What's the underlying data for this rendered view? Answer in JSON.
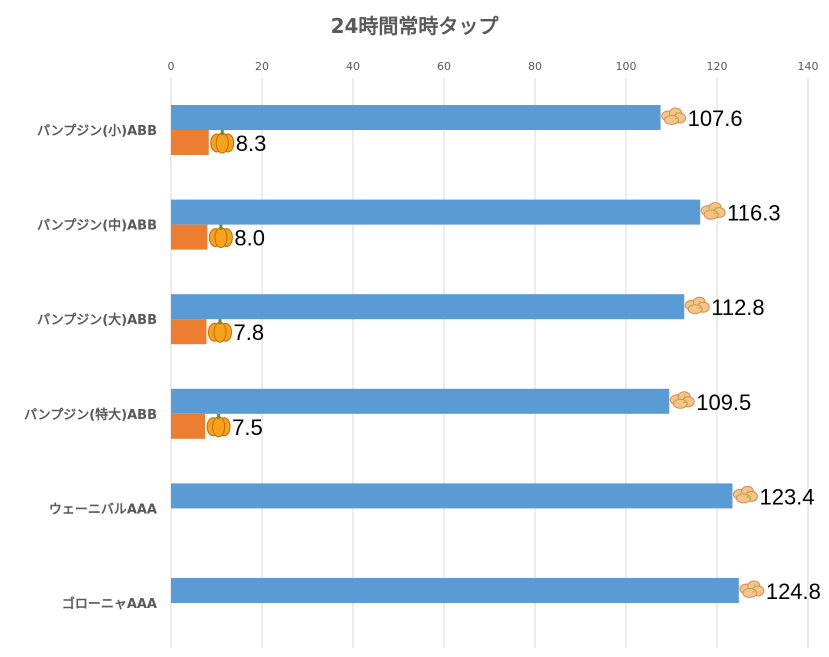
{
  "chart_data": {
    "type": "bar",
    "orientation": "horizontal",
    "title": "24時間常時タップ",
    "categories": [
      "パンプジン(小)ABB",
      "パンプジン(中)ABB",
      "パンプジン(大)ABB",
      "パンプジン(特大)ABB",
      "ウェーニバルAAA",
      "ゴローニャAAA"
    ],
    "series": [
      {
        "icon": "ginger-icon",
        "color": "#5b9bd5",
        "values": [
          107.6,
          116.3,
          112.8,
          109.5,
          123.4,
          124.8
        ],
        "labels": [
          "107.6",
          "116.3",
          "112.8",
          "109.5",
          "123.4",
          "124.8"
        ]
      },
      {
        "icon": "pumpkin-icon",
        "color": "#ed7d31",
        "values": [
          8.3,
          8.0,
          7.8,
          7.5,
          null,
          null
        ],
        "labels": [
          "8.3",
          "8.0",
          "7.8",
          "7.5",
          null,
          null
        ]
      }
    ],
    "xlim": [
      0,
      140
    ],
    "xticks": [
      "0",
      "20",
      "40",
      "60",
      "80",
      "100",
      "120",
      "140"
    ],
    "axis_position": "top",
    "grid": true
  }
}
